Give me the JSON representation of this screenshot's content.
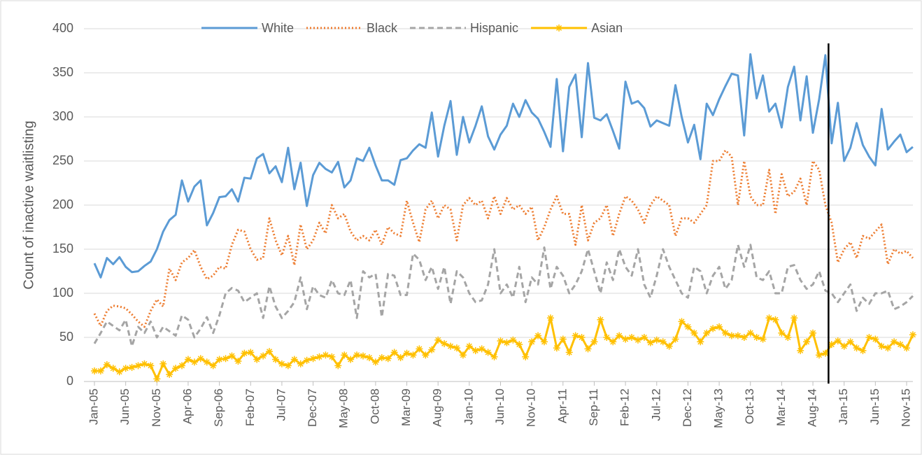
{
  "chart_data": {
    "type": "line",
    "ylabel": "Count of inactive waitlisting",
    "categories": [
      "Jan-05",
      null,
      null,
      null,
      null,
      "Jun-05",
      null,
      null,
      null,
      null,
      "Nov-05",
      null,
      null,
      null,
      null,
      "Apr-06",
      null,
      null,
      null,
      null,
      "Sep-06",
      null,
      null,
      null,
      null,
      "Feb-07",
      null,
      null,
      null,
      null,
      "Jul-07",
      null,
      null,
      null,
      null,
      "Dec-07",
      null,
      null,
      null,
      null,
      "May-08",
      null,
      null,
      null,
      null,
      "Oct-08",
      null,
      null,
      null,
      null,
      "Mar-09",
      null,
      null,
      null,
      null,
      "Aug-09",
      null,
      null,
      null,
      null,
      "Jan-10",
      null,
      null,
      null,
      null,
      "Jun-10",
      null,
      null,
      null,
      null,
      "Nov-10",
      null,
      null,
      null,
      null,
      "Apr-11",
      null,
      null,
      null,
      null,
      "Sep-11",
      null,
      null,
      null,
      null,
      "Feb-12",
      null,
      null,
      null,
      null,
      "Jul-12",
      null,
      null,
      null,
      null,
      "Dec-12",
      null,
      null,
      null,
      null,
      "May-13",
      null,
      null,
      null,
      null,
      "Oct-13",
      null,
      null,
      null,
      null,
      "Mar-14",
      null,
      null,
      null,
      null,
      "Aug-14",
      null,
      null,
      null,
      null,
      "Jan-15",
      null,
      null,
      null,
      null,
      "Jun-15",
      null,
      null,
      null,
      null,
      "Nov-15",
      null
    ],
    "series": [
      {
        "name": "White",
        "color": "#5b9bd5",
        "style": "solid",
        "values": [
          134,
          118,
          140,
          133,
          141,
          130,
          124,
          125,
          131,
          136,
          150,
          170,
          183,
          189,
          228,
          204,
          221,
          228,
          177,
          191,
          209,
          210,
          218,
          204,
          231,
          230,
          253,
          258,
          236,
          244,
          226,
          265,
          218,
          248,
          199,
          234,
          248,
          241,
          237,
          249,
          220,
          228,
          253,
          250,
          265,
          245,
          228,
          228,
          223,
          251,
          253,
          262,
          269,
          265,
          305,
          255,
          290,
          318,
          257,
          300,
          271,
          290,
          312,
          278,
          263,
          280,
          290,
          315,
          300,
          319,
          305,
          298,
          283,
          266,
          343,
          261,
          334,
          348,
          277,
          361,
          299,
          296,
          303,
          284,
          264,
          340,
          315,
          318,
          310,
          289,
          296,
          293,
          290,
          336,
          300,
          271,
          291,
          252,
          315,
          302,
          320,
          335,
          349,
          347,
          279,
          371,
          321,
          347,
          306,
          315,
          288,
          334,
          357,
          296,
          346,
          282,
          320,
          370,
          270,
          316,
          250,
          265,
          293,
          268,
          255,
          245,
          309,
          263,
          272,
          280,
          260,
          266
        ]
      },
      {
        "name": "Black",
        "color": "#ed7d31",
        "style": "dotted",
        "values": [
          77,
          63,
          80,
          86,
          85,
          83,
          76,
          68,
          62,
          80,
          93,
          85,
          128,
          115,
          135,
          140,
          149,
          130,
          116,
          120,
          130,
          128,
          155,
          172,
          170,
          150,
          138,
          140,
          185,
          160,
          143,
          165,
          132,
          178,
          150,
          160,
          180,
          168,
          200,
          185,
          190,
          170,
          160,
          165,
          160,
          172,
          155,
          175,
          168,
          165,
          205,
          180,
          158,
          195,
          205,
          185,
          200,
          195,
          160,
          200,
          208,
          200,
          205,
          185,
          210,
          190,
          208,
          195,
          200,
          190,
          198,
          160,
          175,
          195,
          210,
          190,
          190,
          155,
          200,
          160,
          180,
          185,
          200,
          165,
          190,
          210,
          205,
          195,
          180,
          200,
          210,
          205,
          200,
          165,
          185,
          185,
          180,
          190,
          200,
          250,
          250,
          262,
          255,
          200,
          250,
          210,
          200,
          200,
          240,
          190,
          235,
          210,
          215,
          230,
          200,
          250,
          240,
          200,
          180,
          135,
          150,
          158,
          140,
          165,
          162,
          170,
          178,
          133,
          150,
          145,
          148,
          140
        ]
      },
      {
        "name": "Hispanic",
        "color": "#a5a5a5",
        "style": "dashed",
        "values": [
          43,
          55,
          68,
          63,
          58,
          70,
          40,
          62,
          55,
          68,
          50,
          62,
          57,
          52,
          75,
          70,
          50,
          60,
          73,
          55,
          75,
          100,
          106,
          103,
          90,
          95,
          100,
          72,
          108,
          85,
          72,
          80,
          90,
          118,
          82,
          108,
          98,
          95,
          115,
          100,
          98,
          115,
          72,
          125,
          118,
          122,
          73,
          122,
          120,
          98,
          98,
          145,
          138,
          115,
          130,
          105,
          130,
          88,
          125,
          118,
          100,
          90,
          92,
          110,
          150,
          100,
          110,
          95,
          130,
          90,
          118,
          110,
          152,
          105,
          130,
          120,
          100,
          110,
          125,
          150,
          125,
          100,
          135,
          115,
          150,
          130,
          120,
          150,
          110,
          95,
          120,
          150,
          130,
          115,
          100,
          95,
          130,
          125,
          100,
          120,
          130,
          105,
          115,
          155,
          130,
          155,
          118,
          115,
          125,
          100,
          100,
          130,
          132,
          115,
          105,
          110,
          125,
          103,
          100,
          90,
          100,
          110,
          80,
          95,
          88,
          100,
          100,
          103,
          82,
          85,
          90,
          97
        ]
      },
      {
        "name": "Asian",
        "color": "#ffc000",
        "style": "solid",
        "marker": "asterisk",
        "values": [
          12,
          12,
          19,
          15,
          11,
          15,
          16,
          18,
          20,
          18,
          3,
          20,
          8,
          15,
          18,
          25,
          22,
          26,
          22,
          18,
          25,
          26,
          29,
          23,
          32,
          33,
          25,
          29,
          34,
          25,
          20,
          18,
          25,
          20,
          24,
          26,
          28,
          30,
          28,
          18,
          30,
          25,
          30,
          29,
          27,
          22,
          27,
          26,
          33,
          27,
          32,
          30,
          37,
          30,
          36,
          47,
          43,
          40,
          38,
          30,
          40,
          35,
          37,
          33,
          28,
          46,
          44,
          47,
          42,
          28,
          45,
          52,
          45,
          72,
          38,
          48,
          33,
          52,
          50,
          37,
          45,
          70,
          50,
          45,
          52,
          48,
          50,
          47,
          50,
          44,
          47,
          45,
          40,
          48,
          68,
          62,
          55,
          45,
          55,
          60,
          62,
          55,
          52,
          52,
          50,
          55,
          50,
          48,
          72,
          70,
          55,
          50,
          72,
          35,
          45,
          55,
          30,
          32,
          42,
          46,
          40,
          45,
          38,
          35,
          50,
          48,
          40,
          38,
          45,
          42,
          38,
          53
        ]
      }
    ],
    "ylim": [
      0,
      400
    ],
    "yticks": [
      0,
      50,
      100,
      150,
      200,
      250,
      300,
      350,
      400
    ],
    "grid": true,
    "vline": 117.5
  }
}
